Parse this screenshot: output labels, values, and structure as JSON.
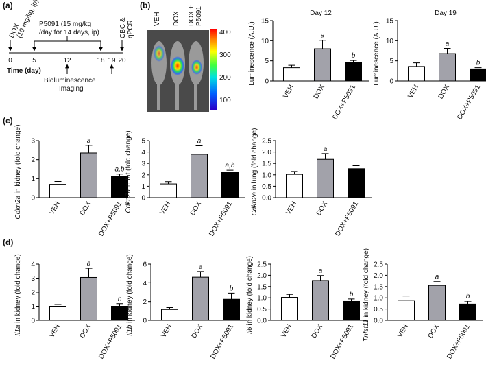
{
  "panel_labels": [
    "(a)",
    "(b)",
    "(c)",
    "(d)"
  ],
  "timeline": {
    "dox_label": [
      "DOX",
      "(10 mg/kg, ip)"
    ],
    "p5091_label": [
      "P5091 (15 mg/kg",
      "/day for 14 days, ip)"
    ],
    "end_label": [
      "CBC &",
      "qPCR"
    ],
    "axis_label": "Time (day)",
    "imaging_label": [
      "Bioluminescence",
      "Imaging"
    ],
    "ticks": [
      0,
      5,
      12,
      18,
      19,
      20
    ]
  },
  "imaging": {
    "column_labels": [
      "VEH",
      "DOX",
      "DOX +",
      "P5091"
    ],
    "colorbar_ticks": [
      400,
      300,
      200,
      100
    ]
  },
  "chart_data": [
    {
      "type": "bar",
      "title": "Day 12",
      "ylabel": "Luminescence (A.U.)",
      "categories": [
        "VEH",
        "DOX",
        "DOX+P5091"
      ],
      "colors": [
        "#ffffff",
        "#a2a2aa",
        "#000000"
      ],
      "values": [
        3.3,
        8.0,
        4.6
      ],
      "errors": [
        0.6,
        2.1,
        0.5
      ],
      "annotations": [
        null,
        "a",
        "b"
      ],
      "ylim": [
        0,
        15
      ],
      "yticks": [
        0,
        5,
        10,
        15
      ]
    },
    {
      "type": "bar",
      "title": "Day 19",
      "ylabel": "Luminescence (A.U.)",
      "categories": [
        "VEH",
        "DOX",
        "DOX+P5091"
      ],
      "colors": [
        "#ffffff",
        "#a2a2aa",
        "#000000"
      ],
      "values": [
        3.6,
        6.8,
        3.0
      ],
      "errors": [
        0.9,
        1.3,
        0.3
      ],
      "annotations": [
        null,
        "a",
        "b"
      ],
      "ylim": [
        0,
        15
      ],
      "yticks": [
        0,
        5,
        10,
        15
      ]
    },
    {
      "type": "bar",
      "ylabel_gene": "Cdkn2a",
      "ylabel": " in kidney (fold change)",
      "categories": [
        "VEH",
        "DOX",
        "DOX+P5091"
      ],
      "colors": [
        "#ffffff",
        "#a2a2aa",
        "#000000"
      ],
      "values": [
        0.7,
        2.35,
        1.12
      ],
      "errors": [
        0.15,
        0.4,
        0.12
      ],
      "annotations": [
        null,
        "a",
        "a,b"
      ],
      "ylim": [
        0,
        3
      ],
      "yticks": [
        0,
        1,
        2,
        3
      ]
    },
    {
      "type": "bar",
      "ylabel_gene": "Cdkn2a",
      "ylabel": " in fat (fold change)",
      "categories": [
        "VEH",
        "DOX",
        "DOX+P5091"
      ],
      "colors": [
        "#ffffff",
        "#a2a2aa",
        "#000000"
      ],
      "values": [
        1.2,
        3.8,
        2.2
      ],
      "errors": [
        0.2,
        0.75,
        0.2
      ],
      "annotations": [
        null,
        "a",
        "a,b"
      ],
      "ylim": [
        0,
        5
      ],
      "yticks": [
        0,
        1,
        2,
        3,
        4,
        5
      ]
    },
    {
      "type": "bar",
      "ylabel_gene": "Cdkn2a",
      "ylabel": " in lung (fold change)",
      "categories": [
        "VEH",
        "DOX",
        "DOX+P5091"
      ],
      "colors": [
        "#ffffff",
        "#a2a2aa",
        "#000000"
      ],
      "values": [
        1.02,
        1.68,
        1.27
      ],
      "errors": [
        0.13,
        0.25,
        0.13
      ],
      "annotations": [
        null,
        "a",
        null
      ],
      "ylim": [
        0,
        2.5
      ],
      "yticks": [
        {
          "value": 0,
          "label": "0.0"
        },
        0.5,
        {
          "value": 1,
          "label": "1.0"
        },
        1.5,
        {
          "value": 2,
          "label": "2.0"
        },
        2.5
      ]
    },
    {
      "type": "bar",
      "ylabel_gene": "Il1a",
      "ylabel": " in kidney (fold change)",
      "categories": [
        "VEH",
        "DOX",
        "DOX+P5091"
      ],
      "colors": [
        "#ffffff",
        "#a2a2aa",
        "#000000"
      ],
      "values": [
        1.0,
        3.05,
        1.0
      ],
      "errors": [
        0.12,
        0.65,
        0.18
      ],
      "annotations": [
        null,
        "a",
        "b"
      ],
      "ylim": [
        0,
        4
      ],
      "yticks": [
        0,
        1,
        2,
        3,
        4
      ]
    },
    {
      "type": "bar",
      "ylabel_gene": "Il1b",
      "ylabel": " in kidney (fold change)",
      "categories": [
        "VEH",
        "DOX",
        "DOX+P5091"
      ],
      "colors": [
        "#ffffff",
        "#a2a2aa",
        "#000000"
      ],
      "values": [
        1.15,
        4.6,
        2.25
      ],
      "errors": [
        0.2,
        0.6,
        0.65
      ],
      "annotations": [
        null,
        "a",
        "b"
      ],
      "ylim": [
        0,
        6
      ],
      "yticks": [
        0,
        2,
        4,
        6
      ]
    },
    {
      "type": "bar",
      "ylabel_gene": "Il6",
      "ylabel": " in kidney (fold change)",
      "categories": [
        "VEH",
        "DOX",
        "DOX+P5091"
      ],
      "colors": [
        "#ffffff",
        "#a2a2aa",
        "#000000"
      ],
      "values": [
        1.02,
        1.77,
        0.87
      ],
      "errors": [
        0.13,
        0.22,
        0.08
      ],
      "annotations": [
        null,
        "a",
        "b"
      ],
      "ylim": [
        0,
        2.5
      ],
      "yticks": [
        {
          "value": 0,
          "label": "0.0"
        },
        0.5,
        {
          "value": 1,
          "label": "1.0"
        },
        1.5,
        {
          "value": 2,
          "label": "2.0"
        },
        2.5
      ]
    },
    {
      "type": "bar",
      "ylabel_gene": "Tnfsf11",
      "ylabel": " in kidney (fold change)",
      "categories": [
        "VEH",
        "DOX",
        "DOX+P5091"
      ],
      "colors": [
        "#ffffff",
        "#a2a2aa",
        "#000000"
      ],
      "values": [
        0.88,
        1.55,
        0.72
      ],
      "errors": [
        0.2,
        0.18,
        0.13
      ],
      "annotations": [
        null,
        "a",
        "b"
      ],
      "ylim": [
        0,
        2.5
      ],
      "yticks": [
        {
          "value": 0,
          "label": "0.0"
        },
        0.5,
        {
          "value": 1,
          "label": "1.0"
        },
        1.5,
        {
          "value": 2,
          "label": "2.0"
        },
        2.5
      ]
    }
  ]
}
